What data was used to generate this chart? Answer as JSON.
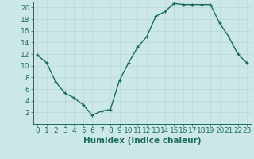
{
  "x": [
    0,
    1,
    2,
    3,
    4,
    5,
    6,
    7,
    8,
    9,
    10,
    11,
    12,
    13,
    14,
    15,
    16,
    17,
    18,
    19,
    20,
    21,
    22,
    23
  ],
  "y": [
    11.8,
    10.5,
    7.2,
    5.3,
    4.5,
    3.3,
    1.5,
    2.2,
    2.5,
    7.5,
    10.5,
    13.2,
    15.0,
    18.5,
    19.3,
    20.7,
    20.5,
    20.5,
    20.5,
    20.5,
    17.3,
    15.0,
    12.0,
    10.5
  ],
  "line_color": "#1a6b5e",
  "marker": "+",
  "marker_size": 3,
  "bg_color": "#cce8e6",
  "grid_color": "#b8d8d6",
  "xlabel": "Humidex (Indice chaleur)",
  "xlim": [
    -0.5,
    23.5
  ],
  "ylim": [
    0,
    21
  ],
  "yticks": [
    2,
    4,
    6,
    8,
    10,
    12,
    14,
    16,
    18,
    20
  ],
  "xticks": [
    0,
    1,
    2,
    3,
    4,
    5,
    6,
    7,
    8,
    9,
    10,
    11,
    12,
    13,
    14,
    15,
    16,
    17,
    18,
    19,
    20,
    21,
    22,
    23
  ],
  "tick_color": "#1a6b5e",
  "label_color": "#1a6b5e",
  "font_size": 6.5,
  "xlabel_fontsize": 7.5,
  "linewidth": 1.0,
  "markeredgewidth": 0.9
}
